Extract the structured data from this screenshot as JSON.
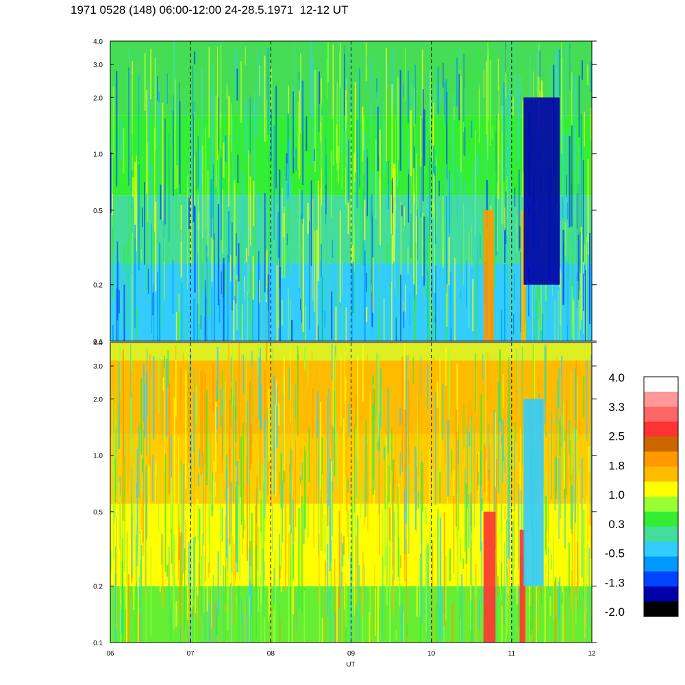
{
  "title": "1971 0528 (148) 06:00-12:00 24-28.5.1971  12-12 UT",
  "chart_data": {
    "type": "heatmap",
    "title": "1971 0528 (148) 06:00-12:00 24-28.5.1971  12-12 UT",
    "xlabel": "UT",
    "x_ticks": [
      "06",
      "07",
      "08",
      "09",
      "10",
      "11",
      "12"
    ],
    "x_range": [
      6,
      12
    ],
    "dashed_vlines_ut": [
      7,
      8,
      9,
      10,
      11
    ],
    "panels": [
      {
        "name": "upper",
        "y_scale": "log",
        "y_range": [
          0.1,
          4.0
        ],
        "y_ticks": [
          "0.1",
          "0.2",
          "0.5",
          "1.0",
          "2.0",
          "3.0",
          "4.0"
        ],
        "background_level": "-0.5 to 0.3",
        "features": [
          {
            "ut": [
              10.65,
              10.78
            ],
            "freq": [
              0.1,
              0.5
            ],
            "level": "1.8 to 2.5"
          },
          {
            "ut": [
              11.12,
              11.18
            ],
            "freq": [
              0.1,
              0.5
            ],
            "level": "1.8"
          },
          {
            "ut": [
              11.15,
              11.6
            ],
            "freq": [
              0.2,
              2.0
            ],
            "level": "-2.0 to -1.3"
          }
        ]
      },
      {
        "name": "lower",
        "y_scale": "log",
        "y_range": [
          0.1,
          4.0
        ],
        "y_ticks": [
          "0.1",
          "0.2",
          "0.5",
          "1.0",
          "2.0",
          "3.0",
          "4.0"
        ],
        "background_level": "0.3 to 1.8",
        "features": [
          {
            "ut": [
              10.65,
              10.8
            ],
            "freq": [
              0.1,
              0.5
            ],
            "level": "2.5 to 3.3"
          },
          {
            "ut": [
              11.1,
              11.17
            ],
            "freq": [
              0.1,
              0.4
            ],
            "level": "2.5"
          },
          {
            "ut": [
              11.15,
              11.4
            ],
            "freq": [
              0.2,
              2.0
            ],
            "level": "-0.5"
          }
        ]
      }
    ],
    "colorbar": {
      "labels": [
        "4.0",
        "3.3",
        "2.5",
        "1.8",
        "1.0",
        "0.3",
        "-0.5",
        "-1.3",
        "-2.0"
      ],
      "colors": [
        "#ffffff",
        "#ff9999",
        "#ff6666",
        "#ff3333",
        "#cc6600",
        "#ff9900",
        "#ffbb00",
        "#ffff00",
        "#99ff33",
        "#33ee33",
        "#44dd99",
        "#33ccff",
        "#0099ff",
        "#0044ff",
        "#0000aa",
        "#000000"
      ]
    }
  }
}
